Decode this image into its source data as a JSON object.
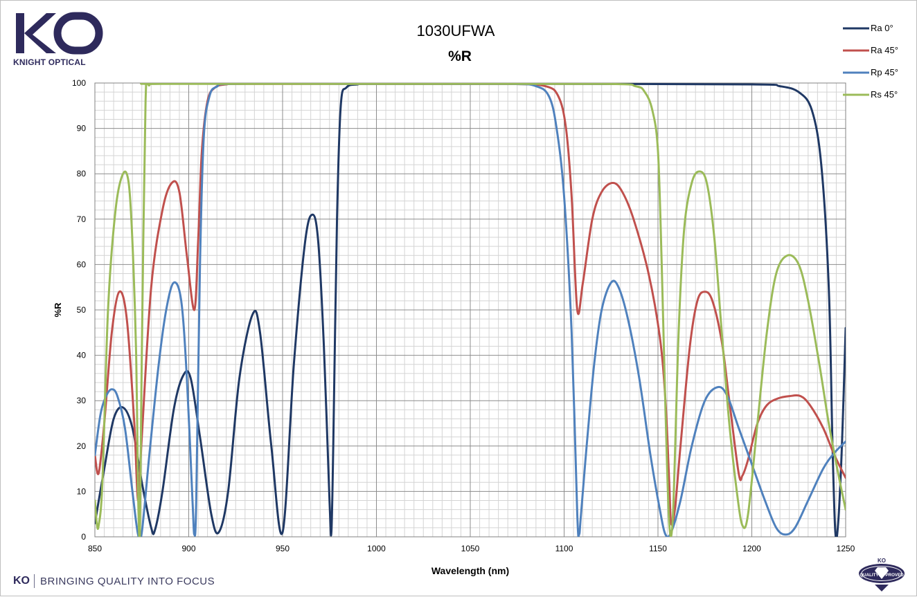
{
  "brand": {
    "logo_letters": "KO",
    "company_name": "KNIGHT OPTICAL",
    "footer_mark": "KO",
    "footer_tagline": "BRINGING QUALITY INTO FOCUS",
    "badge_top_text": "KO",
    "badge_text": "QUALITY APPROVED",
    "brand_color": "#2e2a5c"
  },
  "chart_data": {
    "type": "line",
    "title": "1030UFWA",
    "subtitle": "%R",
    "xlabel": "Wavelength (nm)",
    "ylabel": "%R",
    "xlim": [
      850,
      1250
    ],
    "ylim": [
      0,
      100
    ],
    "x_ticks": [
      850,
      900,
      950,
      1000,
      1050,
      1100,
      1150,
      1200,
      1250
    ],
    "y_ticks": [
      0,
      10,
      20,
      30,
      40,
      50,
      60,
      70,
      80,
      90,
      100
    ],
    "grid": true,
    "legend_position": "top-right",
    "series": [
      {
        "name": "Ra 0°",
        "color": "#1f3864",
        "points": [
          [
            850,
            3
          ],
          [
            855,
            15
          ],
          [
            860,
            26
          ],
          [
            865,
            28.5
          ],
          [
            870,
            24
          ],
          [
            875,
            12
          ],
          [
            880,
            2
          ],
          [
            882,
            1.5
          ],
          [
            886,
            10
          ],
          [
            892,
            28
          ],
          [
            897,
            35.5
          ],
          [
            901,
            35
          ],
          [
            906,
            22
          ],
          [
            912,
            5
          ],
          [
            916,
            1
          ],
          [
            921,
            10
          ],
          [
            927,
            35
          ],
          [
            934,
            49
          ],
          [
            938,
            45
          ],
          [
            944,
            20
          ],
          [
            950,
            1
          ],
          [
            956,
            38
          ],
          [
            962,
            65
          ],
          [
            966,
            71
          ],
          [
            969,
            65
          ],
          [
            972,
            42
          ],
          [
            975,
            8
          ],
          [
            976,
            1
          ],
          [
            977,
            20
          ],
          [
            979,
            70
          ],
          [
            981,
            95
          ],
          [
            984,
            99
          ],
          [
            990,
            99.7
          ],
          [
            1000,
            99.8
          ],
          [
            1100,
            99.8
          ],
          [
            1200,
            99.7
          ],
          [
            1215,
            99.3
          ],
          [
            1225,
            98
          ],
          [
            1232,
            94
          ],
          [
            1237,
            82
          ],
          [
            1241,
            55
          ],
          [
            1243,
            20
          ],
          [
            1244.5,
            1
          ],
          [
            1246,
            3
          ],
          [
            1248,
            20
          ],
          [
            1250,
            46
          ]
        ]
      },
      {
        "name": "Ra 45°",
        "color": "#c0504d",
        "points": [
          [
            850,
            18
          ],
          [
            852,
            14
          ],
          [
            855,
            25
          ],
          [
            859,
            45
          ],
          [
            863,
            54
          ],
          [
            867,
            48
          ],
          [
            871,
            25
          ],
          [
            873,
            8
          ],
          [
            875,
            22
          ],
          [
            880,
            55
          ],
          [
            886,
            72
          ],
          [
            891,
            78
          ],
          [
            895,
            76
          ],
          [
            899,
            62
          ],
          [
            903,
            50
          ],
          [
            905,
            65
          ],
          [
            907,
            85
          ],
          [
            910,
            96
          ],
          [
            914,
            99
          ],
          [
            920,
            99.7
          ],
          [
            930,
            99.8
          ],
          [
            1000,
            99.8
          ],
          [
            1070,
            99.8
          ],
          [
            1090,
            99.3
          ],
          [
            1097,
            97
          ],
          [
            1101,
            90
          ],
          [
            1104,
            75
          ],
          [
            1107,
            50
          ],
          [
            1110,
            56
          ],
          [
            1115,
            70
          ],
          [
            1120,
            76
          ],
          [
            1126,
            78
          ],
          [
            1131,
            76
          ],
          [
            1137,
            70
          ],
          [
            1145,
            58
          ],
          [
            1151,
            44
          ],
          [
            1154,
            30
          ],
          [
            1156,
            12
          ],
          [
            1157,
            3
          ],
          [
            1159,
            6
          ],
          [
            1162,
            20
          ],
          [
            1167,
            42
          ],
          [
            1171,
            52
          ],
          [
            1175,
            54
          ],
          [
            1179,
            52
          ],
          [
            1184,
            43
          ],
          [
            1188,
            30
          ],
          [
            1193,
            14
          ],
          [
            1195,
            13.5
          ],
          [
            1198,
            17
          ],
          [
            1203,
            25
          ],
          [
            1208,
            29
          ],
          [
            1214,
            30.5
          ],
          [
            1220,
            31
          ],
          [
            1226,
            31
          ],
          [
            1231,
            29
          ],
          [
            1238,
            24
          ],
          [
            1244,
            18
          ],
          [
            1250,
            13
          ]
        ]
      },
      {
        "name": "Rp 45°",
        "color": "#4f81bd",
        "points": [
          [
            850,
            18
          ],
          [
            853,
            27
          ],
          [
            856,
            31
          ],
          [
            859,
            32.5
          ],
          [
            862,
            31
          ],
          [
            866,
            24
          ],
          [
            870,
            10
          ],
          [
            873,
            0.5
          ],
          [
            875,
            1
          ],
          [
            879,
            18
          ],
          [
            884,
            38
          ],
          [
            888,
            50
          ],
          [
            892,
            56
          ],
          [
            896,
            52
          ],
          [
            899,
            35
          ],
          [
            902,
            8
          ],
          [
            903,
            0.5
          ],
          [
            904,
            8
          ],
          [
            906,
            60
          ],
          [
            908,
            88
          ],
          [
            911,
            97
          ],
          [
            915,
            99.2
          ],
          [
            925,
            99.8
          ],
          [
            1000,
            99.8
          ],
          [
            1070,
            99.8
          ],
          [
            1085,
            99.3
          ],
          [
            1092,
            97
          ],
          [
            1096,
            90
          ],
          [
            1100,
            75
          ],
          [
            1104,
            45
          ],
          [
            1107,
            5
          ],
          [
            1108,
            0.5
          ],
          [
            1109,
            5
          ],
          [
            1112,
            20
          ],
          [
            1116,
            38
          ],
          [
            1120,
            50
          ],
          [
            1125,
            56
          ],
          [
            1129,
            55
          ],
          [
            1134,
            48
          ],
          [
            1140,
            35
          ],
          [
            1146,
            18
          ],
          [
            1151,
            6
          ],
          [
            1154,
            0.5
          ],
          [
            1157,
            1
          ],
          [
            1162,
            8
          ],
          [
            1168,
            20
          ],
          [
            1175,
            30
          ],
          [
            1182,
            33
          ],
          [
            1187,
            31
          ],
          [
            1193,
            24
          ],
          [
            1200,
            16
          ],
          [
            1207,
            8
          ],
          [
            1213,
            2
          ],
          [
            1218,
            0.5
          ],
          [
            1223,
            2
          ],
          [
            1230,
            8
          ],
          [
            1238,
            15
          ],
          [
            1244,
            18.5
          ],
          [
            1250,
            21
          ]
        ]
      },
      {
        "name": "Rs 45°",
        "color": "#9bbb59",
        "points": [
          [
            850,
            8
          ],
          [
            851,
            3
          ],
          [
            852,
            2.5
          ],
          [
            854,
            12
          ],
          [
            857,
            50
          ],
          [
            861,
            72
          ],
          [
            865,
            80
          ],
          [
            868,
            78
          ],
          [
            870,
            65
          ],
          [
            872,
            40
          ],
          [
            873,
            10
          ],
          [
            874,
            1
          ],
          [
            875,
            40
          ],
          [
            877,
            96
          ],
          [
            879,
            99.5
          ],
          [
            885,
            99.8
          ],
          [
            1000,
            99.8
          ],
          [
            1120,
            99.8
          ],
          [
            1138,
            99.3
          ],
          [
            1143,
            98
          ],
          [
            1147,
            94
          ],
          [
            1150,
            85
          ],
          [
            1152,
            60
          ],
          [
            1154,
            28
          ],
          [
            1156,
            3
          ],
          [
            1158,
            5
          ],
          [
            1161,
            45
          ],
          [
            1164,
            68
          ],
          [
            1168,
            78
          ],
          [
            1172,
            80.5
          ],
          [
            1176,
            78
          ],
          [
            1180,
            66
          ],
          [
            1184,
            45
          ],
          [
            1188,
            25
          ],
          [
            1192,
            10
          ],
          [
            1195,
            2.5
          ],
          [
            1198,
            5
          ],
          [
            1203,
            25
          ],
          [
            1208,
            45
          ],
          [
            1213,
            58
          ],
          [
            1219,
            62
          ],
          [
            1225,
            60
          ],
          [
            1230,
            52
          ],
          [
            1236,
            38
          ],
          [
            1241,
            25
          ],
          [
            1246,
            14
          ],
          [
            1250,
            6
          ]
        ]
      }
    ]
  }
}
